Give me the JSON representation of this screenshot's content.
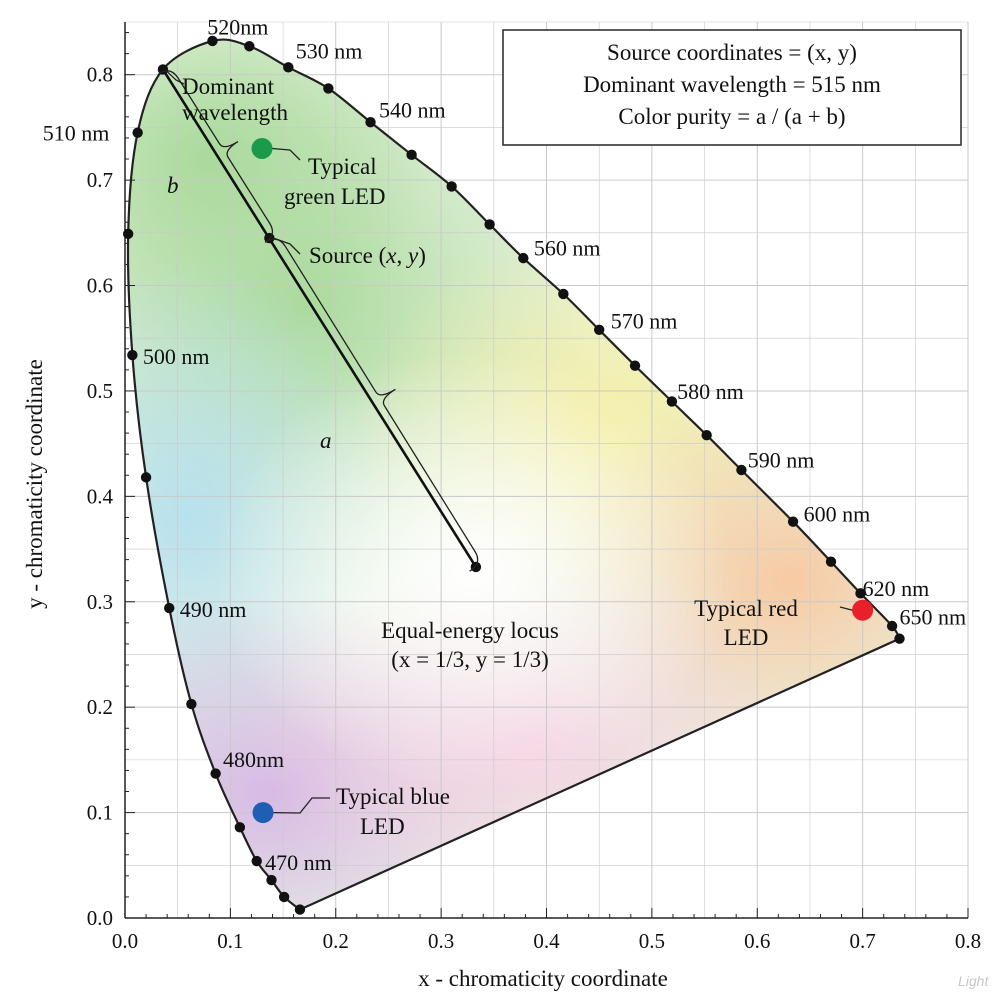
{
  "chart_data": {
    "type": "scatter",
    "xlabel": "x - chromaticity coordinate",
    "ylabel": "y - chromaticity  coordinate",
    "xlim": [
      0,
      0.8
    ],
    "ylim": [
      0,
      0.85
    ],
    "x_ticks": [
      0.0,
      0.1,
      0.2,
      0.3,
      0.4,
      0.5,
      0.6,
      0.7,
      0.8
    ],
    "x_tick_labels": [
      "0.0",
      "0.1",
      "0.2",
      "0.3",
      "0.4",
      "0.5",
      "0.6",
      "0.7",
      "0.8"
    ],
    "y_ticks": [
      0.0,
      0.1,
      0.2,
      0.3,
      0.4,
      0.5,
      0.6,
      0.7,
      0.8
    ],
    "y_tick_labels": [
      "0.0",
      "0.1",
      "0.2",
      "0.3",
      "0.4",
      "0.5",
      "0.6",
      "0.7",
      "0.8"
    ],
    "grid": true,
    "spectral_locus": [
      {
        "x": 0.166,
        "y": 0.008
      },
      {
        "x": 0.151,
        "y": 0.02
      },
      {
        "x": 0.139,
        "y": 0.036
      },
      {
        "x": 0.125,
        "y": 0.054
      },
      {
        "x": 0.109,
        "y": 0.086
      },
      {
        "x": 0.086,
        "y": 0.137
      },
      {
        "x": 0.063,
        "y": 0.203
      },
      {
        "x": 0.042,
        "y": 0.294
      },
      {
        "x": 0.02,
        "y": 0.418
      },
      {
        "x": 0.007,
        "y": 0.534
      },
      {
        "x": 0.003,
        "y": 0.649
      },
      {
        "x": 0.012,
        "y": 0.745
      },
      {
        "x": 0.036,
        "y": 0.805
      },
      {
        "x": 0.083,
        "y": 0.832
      },
      {
        "x": 0.118,
        "y": 0.827
      },
      {
        "x": 0.155,
        "y": 0.807
      },
      {
        "x": 0.193,
        "y": 0.787
      },
      {
        "x": 0.233,
        "y": 0.755
      },
      {
        "x": 0.272,
        "y": 0.724
      },
      {
        "x": 0.31,
        "y": 0.694
      },
      {
        "x": 0.346,
        "y": 0.658
      },
      {
        "x": 0.378,
        "y": 0.626
      },
      {
        "x": 0.416,
        "y": 0.592
      },
      {
        "x": 0.45,
        "y": 0.558
      },
      {
        "x": 0.484,
        "y": 0.524
      },
      {
        "x": 0.519,
        "y": 0.49
      },
      {
        "x": 0.552,
        "y": 0.458
      },
      {
        "x": 0.585,
        "y": 0.425
      },
      {
        "x": 0.634,
        "y": 0.376
      },
      {
        "x": 0.67,
        "y": 0.338
      },
      {
        "x": 0.698,
        "y": 0.308
      },
      {
        "x": 0.728,
        "y": 0.277
      },
      {
        "x": 0.735,
        "y": 0.265
      }
    ],
    "wavelength_labels": [
      {
        "text": "520nm",
        "x": 0.078,
        "y": 0.845
      },
      {
        "text": "530 nm",
        "x": 0.162,
        "y": 0.822
      },
      {
        "text": "540 nm",
        "x": 0.241,
        "y": 0.766
      },
      {
        "text": "510 nm",
        "x": -0.078,
        "y": 0.744
      },
      {
        "text": "560 nm",
        "x": 0.388,
        "y": 0.635
      },
      {
        "text": "570 nm",
        "x": 0.461,
        "y": 0.566
      },
      {
        "text": "580 nm",
        "x": 0.524,
        "y": 0.499
      },
      {
        "text": "590 nm",
        "x": 0.591,
        "y": 0.434
      },
      {
        "text": "600 nm",
        "x": 0.644,
        "y": 0.383
      },
      {
        "text": "620 nm",
        "x": 0.7,
        "y": 0.312
      },
      {
        "text": "650 nm",
        "x": 0.735,
        "y": 0.285
      },
      {
        "text": "500 nm",
        "x": 0.017,
        "y": 0.532
      },
      {
        "text": "490 nm",
        "x": 0.052,
        "y": 0.292
      },
      {
        "text": "480nm",
        "x": 0.093,
        "y": 0.15
      },
      {
        "text": "470 nm",
        "x": 0.133,
        "y": 0.052
      }
    ],
    "equal_energy_point": {
      "x": 0.333,
      "y": 0.333
    },
    "dominant_wavelength_point": {
      "x": 0.036,
      "y": 0.805
    },
    "source_point": {
      "x": 0.137,
      "y": 0.645
    },
    "leds": [
      {
        "name": "Typical green LED",
        "x": 0.13,
        "y": 0.73,
        "color": "#1a9a4a"
      },
      {
        "name": "Typical red LED",
        "x": 0.7,
        "y": 0.292,
        "color": "#e8202a"
      },
      {
        "name": "Typical blue LED",
        "x": 0.131,
        "y": 0.1,
        "color": "#1f5fb3"
      }
    ],
    "annotations": {
      "dominant_line1": "Dominant",
      "dominant_line2": "wavelength",
      "green_led_line1": "Typical",
      "green_led_line2": "green LED",
      "source_prefix": "Source (",
      "source_x": "x",
      "source_sep": ", ",
      "source_y": "y",
      "source_suffix": ")",
      "brace_a": "a",
      "brace_b": "b",
      "equal_energy_line1": "Equal-energy locus",
      "equal_energy_line2": "(x = 1/3, y = 1/3)",
      "red_led_line1": "Typical red",
      "red_led_line2": "LED",
      "blue_led_line1": "Typical blue",
      "blue_led_line2": "LED"
    },
    "info_box": {
      "line1": "Source coordinates = (x, y)",
      "line2": "Dominant wavelength = 515 nm",
      "line3": "Color purity  =  a / (a + b)"
    },
    "colors": {
      "locus": "#222222",
      "grid": "#c9c9c9",
      "green_region": "#bfe3a8",
      "white_point": "#ffffff"
    }
  },
  "credit": "Light"
}
